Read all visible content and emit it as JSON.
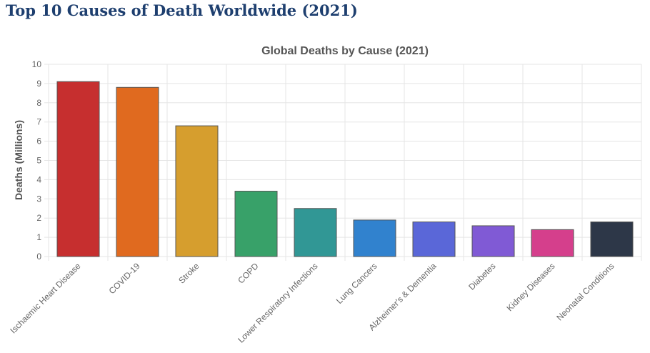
{
  "page_title": "Top 10 Causes of Death Worldwide (2021)",
  "chart_data": {
    "type": "bar",
    "title": "Global Deaths by Cause (2021)",
    "xlabel": "",
    "ylabel": "Deaths (Millions)",
    "ylim": [
      0,
      10
    ],
    "yticks": [
      0,
      1,
      2,
      3,
      4,
      5,
      6,
      7,
      8,
      9,
      10
    ],
    "grid": true,
    "categories": [
      "Ischaemic Heart Disease",
      "COVID-19",
      "Stroke",
      "COPD",
      "Lower Respiratory Infections",
      "Lung Cancers",
      "Alzheimer's & Dementia",
      "Diabetes",
      "Kidney Diseases",
      "Neonatal Conditions"
    ],
    "values": [
      9.1,
      8.8,
      6.8,
      3.4,
      2.5,
      1.9,
      1.8,
      1.6,
      1.4,
      1.8
    ],
    "colors": [
      "#c62f2f",
      "#e06a1f",
      "#d69e2e",
      "#38a169",
      "#319795",
      "#3182ce",
      "#5a67d8",
      "#805ad5",
      "#d53f8c",
      "#2d3748"
    ]
  }
}
